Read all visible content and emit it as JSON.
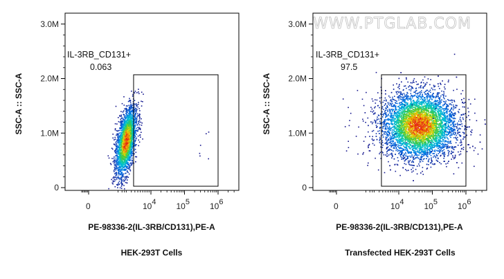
{
  "watermark": "WWW.PTGLAB.COM",
  "chart_data": [
    {
      "type": "scatter",
      "subtitle": "HEK-293T Cells",
      "xlabel": "PE-98336-2(IL-3RB/CD131),PE-A",
      "ylabel": "SSC-A :: SSC-A",
      "y_ticks": [
        {
          "value": 0,
          "label": "0"
        },
        {
          "value": 1000000,
          "label": "1.0M"
        },
        {
          "value": 2000000,
          "label": "2.0M"
        },
        {
          "value": 3000000,
          "label": "3.0M"
        }
      ],
      "x_ticks": [
        {
          "value": 0,
          "label": "0",
          "exp": ""
        },
        {
          "value": 10000,
          "label": "10",
          "exp": "4"
        },
        {
          "value": 100000,
          "label": "10",
          "exp": "5"
        },
        {
          "value": 1000000,
          "label": "10",
          "exp": "6"
        }
      ],
      "xscale": "biexponential",
      "ylim": [
        0,
        3200000
      ],
      "gate": {
        "name": "IL-3RB_CD131+",
        "percent": "0.063",
        "x_range": [
          2600,
          1000000
        ],
        "y_range": [
          0,
          2070000
        ]
      },
      "populations": [
        {
          "center_x": 900,
          "center_y": 850000,
          "spread_x": 0.28,
          "spread_y": 270000,
          "tilt": 0.6,
          "events": 2600
        }
      ]
    },
    {
      "type": "scatter",
      "subtitle": "Transfected HEK-293T Cells",
      "xlabel": "PE-98336-2(IL-3RB/CD131),PE-A",
      "ylabel": "SSC-A :: SSC-A",
      "y_ticks": [
        {
          "value": 0,
          "label": "0"
        },
        {
          "value": 1000000,
          "label": "1.0M"
        },
        {
          "value": 2000000,
          "label": "2.0M"
        },
        {
          "value": 3000000,
          "label": "3.0M"
        }
      ],
      "x_ticks": [
        {
          "value": 0,
          "label": "0",
          "exp": ""
        },
        {
          "value": 10000,
          "label": "10",
          "exp": "4"
        },
        {
          "value": 100000,
          "label": "10",
          "exp": "5"
        },
        {
          "value": 1000000,
          "label": "10",
          "exp": "6"
        }
      ],
      "xscale": "biexponential",
      "ylim": [
        0,
        3200000
      ],
      "gate": {
        "name": "IL-3RB_CD131+",
        "percent": "97.5",
        "x_range": [
          2600,
          1000000
        ],
        "y_range": [
          0,
          2070000
        ]
      },
      "populations": [
        {
          "center_x": 40000,
          "center_y": 1150000,
          "spread_x": 0.42,
          "spread_y": 300000,
          "tilt": 0.0,
          "events": 6000
        }
      ]
    }
  ]
}
